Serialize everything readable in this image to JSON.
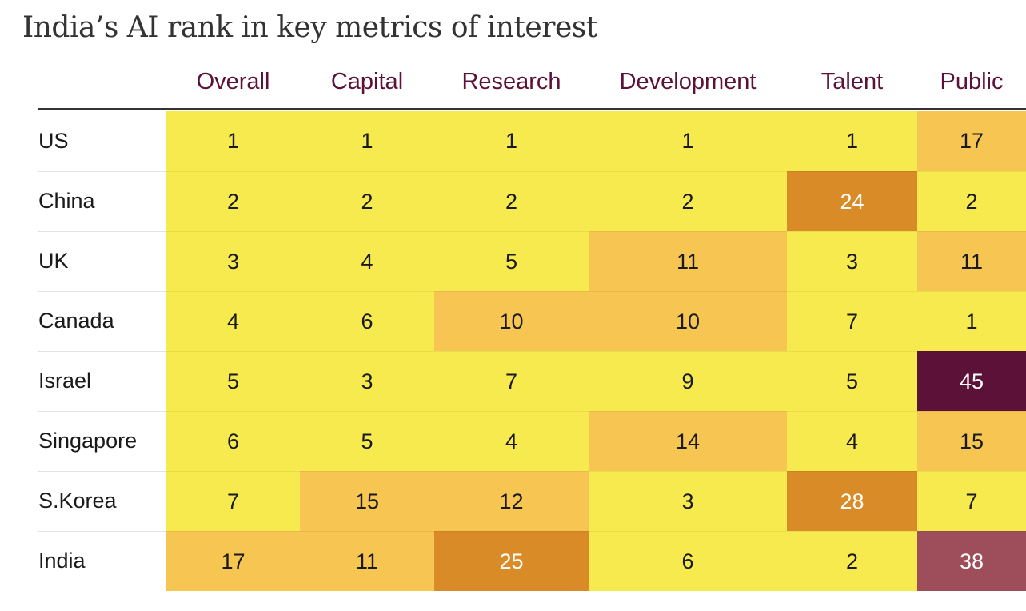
{
  "chart_data": {
    "type": "table",
    "title": "India’s AI rank in key metrics of interest",
    "columns": [
      "Overall",
      "Capital",
      "Research",
      "Development",
      "Talent",
      "Public"
    ],
    "rows": [
      {
        "country": "US",
        "values": [
          1,
          1,
          1,
          1,
          1,
          17
        ]
      },
      {
        "country": "China",
        "values": [
          2,
          2,
          2,
          2,
          24,
          2
        ]
      },
      {
        "country": "UK",
        "values": [
          3,
          4,
          5,
          11,
          3,
          11
        ]
      },
      {
        "country": "Canada",
        "values": [
          4,
          6,
          10,
          10,
          7,
          1
        ]
      },
      {
        "country": "Israel",
        "values": [
          5,
          3,
          7,
          9,
          5,
          45
        ]
      },
      {
        "country": "Singapore",
        "values": [
          6,
          5,
          4,
          14,
          4,
          15
        ]
      },
      {
        "country": "S.Korea",
        "values": [
          7,
          15,
          12,
          3,
          28,
          7
        ]
      },
      {
        "country": "India",
        "values": [
          17,
          11,
          25,
          6,
          2,
          38
        ]
      }
    ],
    "color_scale": [
      {
        "max": 9,
        "fill": "#f7ea4f",
        "text": "#1a1a1a"
      },
      {
        "max": 19,
        "fill": "#f7c552",
        "text": "#1a1a1a"
      },
      {
        "max": 29,
        "fill": "#d88b26",
        "text": "#ffffff"
      },
      {
        "max": 39,
        "fill": "#9e4e5a",
        "text": "#ffffff"
      },
      {
        "max": 99,
        "fill": "#5c1238",
        "text": "#ffffff"
      }
    ]
  }
}
